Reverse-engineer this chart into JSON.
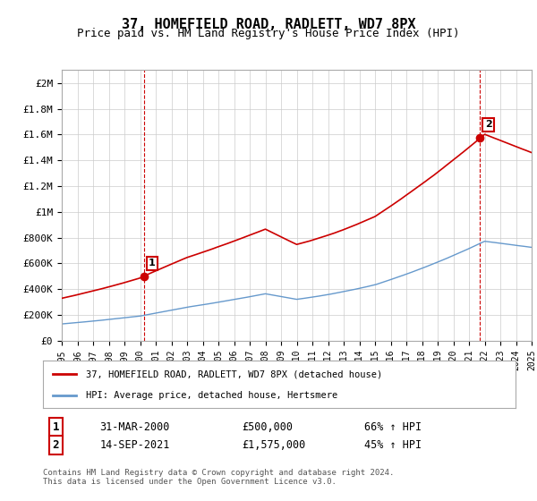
{
  "title": "37, HOMEFIELD ROAD, RADLETT, WD7 8PX",
  "subtitle": "Price paid vs. HM Land Registry's House Price Index (HPI)",
  "ylabel_ticks": [
    "£0",
    "£200K",
    "£400K",
    "£600K",
    "£800K",
    "£1M",
    "£1.2M",
    "£1.4M",
    "£1.6M",
    "£1.8M",
    "£2M"
  ],
  "ytick_values": [
    0,
    200000,
    400000,
    600000,
    800000,
    1000000,
    1200000,
    1400000,
    1600000,
    1800000,
    2000000
  ],
  "ylim": [
    0,
    2100000
  ],
  "year_start": 1995,
  "year_end": 2025,
  "sale1_year": 2000.25,
  "sale1_price": 500000,
  "sale1_label": "1",
  "sale1_date": "31-MAR-2000",
  "sale1_pct": "66% ↑ HPI",
  "sale2_year": 2021.71,
  "sale2_price": 1575000,
  "sale2_label": "2",
  "sale2_date": "14-SEP-2021",
  "sale2_pct": "45% ↑ HPI",
  "red_color": "#cc0000",
  "blue_color": "#6699cc",
  "dashed_color": "#cc0000",
  "grid_color": "#cccccc",
  "bg_color": "#ffffff",
  "legend_label_red": "37, HOMEFIELD ROAD, RADLETT, WD7 8PX (detached house)",
  "legend_label_blue": "HPI: Average price, detached house, Hertsmere",
  "footer": "Contains HM Land Registry data © Crown copyright and database right 2024.\nThis data is licensed under the Open Government Licence v3.0.",
  "annotation1_date": "31-MAR-2000",
  "annotation1_price": "£500,000",
  "annotation1_pct": "66% ↑ HPI",
  "annotation2_date": "14-SEP-2021",
  "annotation2_price": "£1,575,000",
  "annotation2_pct": "45% ↑ HPI"
}
